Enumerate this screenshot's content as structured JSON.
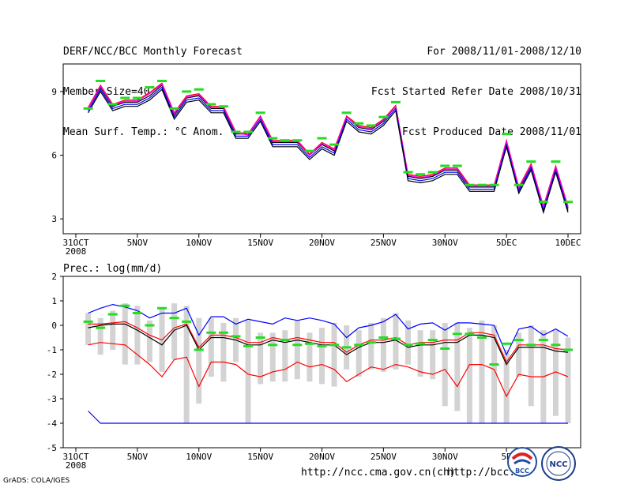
{
  "header": {
    "left": [
      "DERF/NCC/BCC Monthly Forecast",
      "Member Size=40",
      "Mean Surf. Temp.: °C Anom."
    ],
    "right": [
      "For 2008/11/01-2008/12/10",
      "Fcst Started Refer Date 2008/10/31",
      "Fcst Produced Date 2008/11/01"
    ]
  },
  "footer": {
    "url1": "http://ncc.cma.gov.cn(ch)",
    "url2": "http://bcc.c",
    "grads": "GrADS: COLA/IGES"
  },
  "logos": {
    "bcc": "BCC",
    "ncc": "NCC"
  },
  "chart_data": [
    {
      "type": "line",
      "title": "Mean Surf. Temp.: °C Anom.",
      "x_tick_labels": [
        "31OCT",
        "5NOV",
        "10NOV",
        "15NOV",
        "20NOV",
        "25NOV",
        "30NOV",
        "5DEC",
        "10DEC"
      ],
      "x_tick_days": [
        0,
        5,
        10,
        15,
        20,
        25,
        30,
        35,
        40
      ],
      "x_sublabel": "2008",
      "y_ticks": [
        3,
        6,
        9
      ],
      "ylim": [
        2.3,
        10.3
      ],
      "xlim": [
        0,
        40
      ],
      "series": [
        {
          "name": "ensemble-mean",
          "color": "#000000",
          "values": [
            8.2,
            9.2,
            8.3,
            8.5,
            8.5,
            8.8,
            9.3,
            7.9,
            8.7,
            8.8,
            8.2,
            8.2,
            7.0,
            7.0,
            7.8,
            6.6,
            6.6,
            6.6,
            6.0,
            6.5,
            6.2,
            7.8,
            7.3,
            7.2,
            7.6,
            8.3,
            5.0,
            4.9,
            5.0,
            5.3,
            5.3,
            4.5,
            4.5,
            4.5,
            6.6,
            4.4,
            5.5,
            3.5,
            5.4,
            3.5
          ]
        },
        {
          "name": "member-red",
          "color": "#ff0000",
          "values": [
            8.25,
            9.3,
            8.4,
            8.6,
            8.6,
            8.95,
            9.4,
            8.0,
            8.8,
            8.9,
            8.3,
            8.3,
            7.1,
            7.0,
            7.85,
            6.7,
            6.7,
            6.7,
            6.05,
            6.6,
            6.3,
            7.85,
            7.4,
            7.3,
            7.7,
            8.35,
            5.1,
            5.0,
            5.1,
            5.4,
            5.4,
            4.6,
            4.6,
            4.6,
            6.7,
            4.5,
            5.6,
            3.6,
            5.5,
            3.6
          ]
        },
        {
          "name": "member-magenta",
          "color": "#ff00ff",
          "values": [
            8.2,
            9.25,
            8.35,
            8.55,
            8.55,
            8.9,
            9.35,
            7.95,
            8.75,
            8.85,
            8.25,
            8.25,
            7.05,
            6.95,
            7.8,
            6.65,
            6.65,
            6.65,
            6.0,
            6.55,
            6.25,
            7.8,
            7.35,
            7.25,
            7.65,
            8.3,
            5.05,
            4.95,
            5.05,
            5.35,
            5.35,
            4.55,
            4.55,
            4.55,
            6.65,
            4.45,
            5.55,
            3.55,
            5.45,
            3.55
          ]
        },
        {
          "name": "member-blue",
          "color": "#0000ff",
          "values": [
            8.1,
            9.1,
            8.2,
            8.4,
            8.4,
            8.7,
            9.2,
            7.8,
            8.6,
            8.7,
            8.1,
            8.1,
            6.9,
            6.9,
            7.7,
            6.5,
            6.5,
            6.5,
            5.9,
            6.4,
            6.1,
            7.7,
            7.2,
            7.1,
            7.5,
            8.2,
            4.9,
            4.8,
            4.9,
            5.2,
            5.2,
            4.4,
            4.4,
            4.4,
            6.5,
            4.3,
            5.4,
            3.4,
            5.3,
            3.4
          ]
        },
        {
          "name": "member-black-low",
          "color": "#000000",
          "values": [
            8.0,
            9.0,
            8.1,
            8.3,
            8.3,
            8.6,
            9.1,
            7.7,
            8.5,
            8.6,
            8.0,
            8.0,
            6.8,
            6.8,
            7.6,
            6.4,
            6.4,
            6.4,
            5.8,
            6.3,
            6.0,
            7.6,
            7.1,
            7.0,
            7.4,
            8.1,
            4.8,
            4.7,
            4.8,
            5.1,
            5.1,
            4.3,
            4.3,
            4.3,
            6.4,
            4.2,
            5.3,
            3.3,
            5.2,
            3.3
          ]
        }
      ],
      "markers": {
        "name": "observed",
        "color": "#22dd22",
        "values": [
          8.2,
          9.5,
          8.4,
          8.7,
          8.7,
          9.2,
          9.5,
          8.2,
          9.0,
          9.1,
          8.4,
          8.3,
          7.1,
          7.1,
          8.0,
          6.8,
          6.7,
          6.7,
          6.2,
          6.8,
          6.5,
          8.0,
          7.5,
          7.4,
          7.8,
          8.5,
          5.2,
          5.1,
          5.2,
          5.5,
          5.5,
          4.6,
          4.6,
          4.6,
          7.0,
          4.6,
          5.7,
          3.8,
          5.7,
          3.8
        ]
      }
    },
    {
      "type": "line",
      "title": "Prec.: log(mm/d)",
      "x_tick_labels": [
        "31OCT",
        "5NOV",
        "10NOV",
        "15NOV",
        "20NOV",
        "25NOV",
        "30NOV",
        "5D"
      ],
      "x_tick_days": [
        0,
        5,
        10,
        15,
        20,
        25,
        30,
        35
      ],
      "x_sublabel": "2008",
      "y_ticks": [
        2,
        1,
        0,
        -1,
        -2,
        -3,
        -4,
        -5
      ],
      "ylim": [
        -5,
        2
      ],
      "xlim": [
        0,
        40
      ],
      "bars": {
        "name": "spread",
        "color": "#d3d3d3",
        "low": [
          -0.8,
          -1.2,
          -1.0,
          -1.6,
          -1.6,
          -1.5,
          -1.9,
          -1.4,
          -4.0,
          -3.2,
          -2.1,
          -2.3,
          -1.5,
          -4.0,
          -2.4,
          -2.3,
          -2.3,
          -2.2,
          -2.3,
          -2.4,
          -2.5,
          -1.8,
          -2.1,
          -1.8,
          -1.9,
          -1.8,
          -1.6,
          -2.1,
          -2.2,
          -3.3,
          -3.5,
          -4.0,
          -4.0,
          -4.0,
          -4.0,
          -2.1,
          -3.3,
          -4.0,
          -3.7,
          -4.0
        ],
        "high": [
          0.5,
          0.3,
          0.6,
          0.9,
          0.8,
          0.2,
          0.7,
          0.9,
          0.8,
          0.3,
          0.3,
          0.1,
          0.3,
          0.2,
          -0.3,
          -0.3,
          -0.2,
          0.2,
          -0.3,
          -0.1,
          0.1,
          0.0,
          -0.2,
          0.1,
          0.3,
          0.5,
          0.2,
          -0.2,
          -0.2,
          0.1,
          0.1,
          -0.1,
          0.2,
          0.0,
          -1.0,
          -0.3,
          0.0,
          -0.2,
          -0.2,
          -0.5
        ]
      },
      "series": [
        {
          "name": "max",
          "color": "#0000ff",
          "values": [
            0.5,
            0.7,
            0.85,
            0.75,
            0.6,
            0.3,
            0.5,
            0.5,
            0.7,
            -0.4,
            0.35,
            0.35,
            0.05,
            0.25,
            0.15,
            0.05,
            0.3,
            0.2,
            0.3,
            0.2,
            0.05,
            -0.5,
            -0.1,
            0.0,
            0.15,
            0.45,
            -0.15,
            0.05,
            0.1,
            -0.2,
            0.1,
            0.1,
            0.05,
            0.0,
            -1.2,
            -0.15,
            -0.05,
            -0.4,
            -0.15,
            -0.45
          ]
        },
        {
          "name": "mean-red",
          "color": "#ff0000",
          "values": [
            0.05,
            0.05,
            0.1,
            0.15,
            -0.1,
            -0.4,
            -0.6,
            -0.1,
            0.05,
            -0.9,
            -0.4,
            -0.4,
            -0.5,
            -0.7,
            -0.7,
            -0.5,
            -0.6,
            -0.5,
            -0.6,
            -0.7,
            -0.7,
            -1.1,
            -0.8,
            -0.6,
            -0.6,
            -0.5,
            -0.8,
            -0.7,
            -0.7,
            -0.6,
            -0.6,
            -0.3,
            -0.3,
            -0.4,
            -1.5,
            -0.8,
            -0.8,
            -0.8,
            -0.95,
            -1.0
          ]
        },
        {
          "name": "mean-black",
          "color": "#000000",
          "values": [
            -0.1,
            0.0,
            0.05,
            0.05,
            -0.2,
            -0.5,
            -0.8,
            -0.2,
            0.0,
            -1.0,
            -0.5,
            -0.5,
            -0.6,
            -0.8,
            -0.8,
            -0.6,
            -0.7,
            -0.6,
            -0.7,
            -0.8,
            -0.8,
            -1.2,
            -0.9,
            -0.7,
            -0.7,
            -0.6,
            -0.9,
            -0.8,
            -0.8,
            -0.7,
            -0.7,
            -0.4,
            -0.4,
            -0.5,
            -1.6,
            -0.9,
            -0.9,
            -0.9,
            -1.05,
            -1.1
          ]
        },
        {
          "name": "min",
          "color": "#ff0000",
          "values": [
            -0.8,
            -0.7,
            -0.75,
            -0.8,
            -1.2,
            -1.6,
            -2.1,
            -1.4,
            -1.3,
            -2.5,
            -1.5,
            -1.5,
            -1.6,
            -2.0,
            -2.1,
            -1.9,
            -1.8,
            -1.5,
            -1.7,
            -1.6,
            -1.8,
            -2.3,
            -2.0,
            -1.7,
            -1.8,
            -1.6,
            -1.7,
            -1.9,
            -2.0,
            -1.8,
            -2.5,
            -1.6,
            -1.6,
            -1.8,
            -2.9,
            -2.0,
            -2.1,
            -2.1,
            -1.9,
            -2.1
          ]
        },
        {
          "name": "min-envelope",
          "color": "#0000ff",
          "values": [
            -3.5,
            -4.0,
            -4.0,
            -4.0,
            -4.0,
            -4.0,
            -4.0,
            -4.0,
            -4.0,
            -4.0,
            -4.0,
            -4.0,
            -4.0,
            -4.0,
            -4.0,
            -4.0,
            -4.0,
            -4.0,
            -4.0,
            -4.0,
            -4.0,
            -4.0,
            -4.0,
            -4.0,
            -4.0,
            -4.0,
            -4.0,
            -4.0,
            -4.0,
            -4.0,
            -4.0,
            -4.0,
            -4.0,
            -4.0,
            -4.0,
            -4.0,
            -4.0,
            -4.0,
            -4.0,
            -4.0
          ]
        }
      ],
      "markers": {
        "name": "observed",
        "color": "#22dd22",
        "values": [
          0.15,
          -0.1,
          0.45,
          0.8,
          0.5,
          0.0,
          0.7,
          0.3,
          0.15,
          -1.0,
          -0.3,
          -0.3,
          -0.45,
          -0.85,
          -0.5,
          -0.8,
          -0.6,
          -0.8,
          -0.75,
          -0.85,
          -0.8,
          -0.9,
          -0.8,
          -0.7,
          -0.5,
          -0.55,
          -0.8,
          -0.75,
          -0.6,
          -0.95,
          -0.35,
          -0.35,
          -0.5,
          -1.6,
          -0.75,
          -0.6,
          -0.8,
          -0.6,
          -0.8,
          -1.0
        ]
      }
    }
  ]
}
